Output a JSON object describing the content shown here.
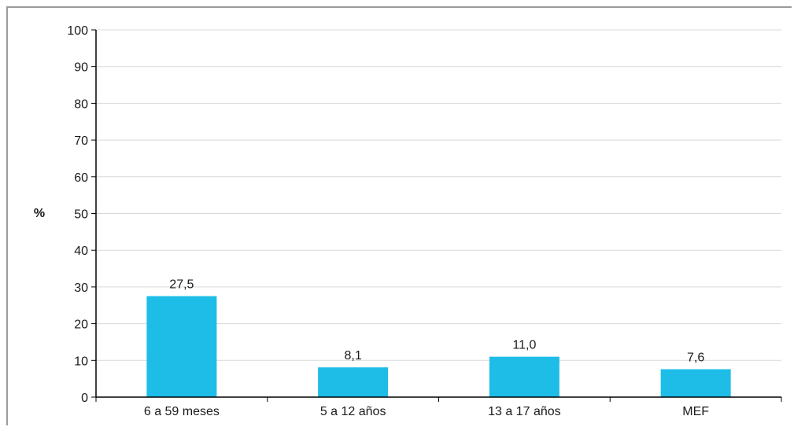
{
  "chart_data": {
    "type": "bar",
    "title": "",
    "xlabel": "",
    "ylabel": "%",
    "ylim": [
      0,
      100
    ],
    "yticks": [
      0,
      10,
      20,
      30,
      40,
      50,
      60,
      70,
      80,
      90,
      100
    ],
    "categories": [
      "6 a 59 meses",
      "5 a 12 años",
      "13 a 17 años",
      "MEF"
    ],
    "values": [
      27.5,
      8.1,
      11.0,
      7.6
    ],
    "data_labels": [
      "27,5",
      "8,1",
      "11,0",
      "7,6"
    ],
    "grid": true,
    "legend": "none",
    "colors": {
      "bar": "#1ebde8",
      "grid": "#d9d9d9",
      "axis": "#000000",
      "frame": "#9b9b9b"
    }
  }
}
